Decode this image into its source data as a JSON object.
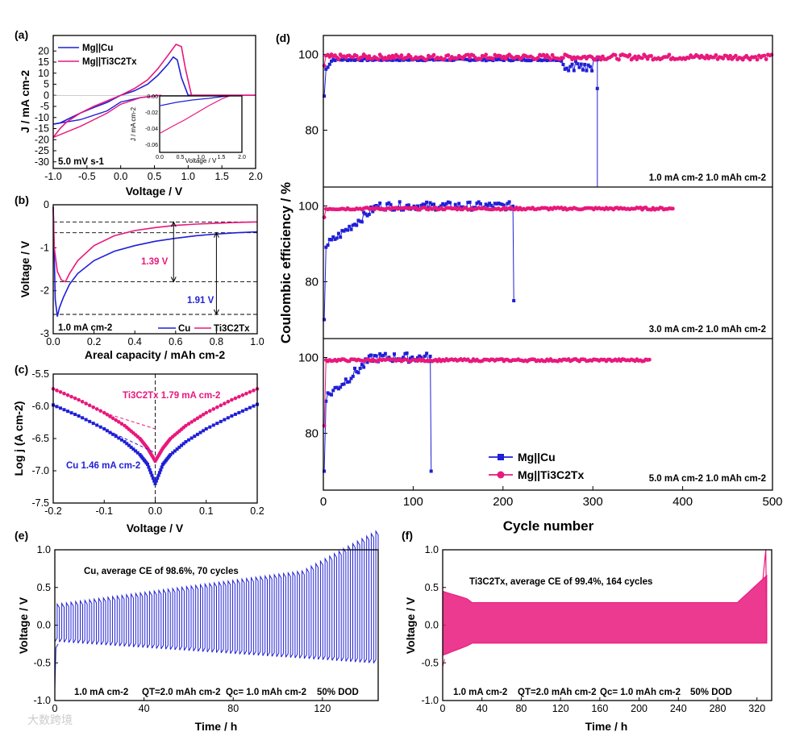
{
  "colors": {
    "cu": "#1f1fd6",
    "ti": "#e8187c"
  },
  "legend": {
    "cu": "Mg||Cu",
    "ti": "Mg||Ti3C2Tx"
  },
  "chart_data": [
    {
      "id": "a",
      "panel_label": "(a)",
      "type": "line",
      "xlabel": "Voltage / V",
      "ylabel": "J / mA cm-2",
      "xlim": [
        -1.0,
        2.0
      ],
      "ylim": [
        -33,
        27
      ],
      "xticks": [
        "-1.0",
        "-0.5",
        "0.0",
        "0.5",
        "1.0",
        "1.5",
        "2.0"
      ],
      "yticks": [
        "-30",
        "-25",
        "-20",
        "-15",
        "-10",
        "-5",
        "0",
        "5",
        "10",
        "15",
        "20"
      ],
      "annotation": "5.0 mV s-1",
      "inset": {
        "xlabel": "Voltage / V",
        "ylabel": "J / mA cm-2",
        "xticks": [
          "0.0",
          "0.5",
          "1.0",
          "1.5",
          "2.0"
        ],
        "yticks": [
          "0.00",
          "-0.02",
          "-0.04",
          "-0.06"
        ]
      },
      "series": [
        {
          "name": "Mg||Cu",
          "x": [
            -1.0,
            -0.9,
            -0.8,
            -0.6,
            -0.4,
            -0.2,
            0.0,
            0.2,
            0.4,
            0.55,
            0.7,
            0.78,
            0.84,
            0.9,
            1.0,
            1.2,
            2.0
          ],
          "y": [
            -13,
            -12.5,
            -11,
            -8,
            -5.5,
            -3.2,
            0,
            2,
            5,
            9,
            14,
            17.3,
            16,
            8,
            0,
            0,
            0
          ]
        },
        {
          "name": "Mg||Ti3C2Tx",
          "x": [
            -1.0,
            -0.9,
            -0.8,
            -0.6,
            -0.4,
            -0.2,
            0.0,
            0.2,
            0.4,
            0.55,
            0.7,
            0.82,
            0.9,
            0.96,
            1.05,
            1.2,
            2.0
          ],
          "y": [
            -19,
            -15,
            -12,
            -8,
            -5,
            -2.5,
            0,
            3,
            7,
            12,
            18,
            23,
            22,
            12,
            0,
            0,
            0
          ]
        }
      ]
    },
    {
      "id": "b",
      "panel_label": "(b)",
      "type": "line",
      "xlabel": "Areal capacity / mAh cm-2",
      "ylabel": "Voltage / V",
      "xlim": [
        0,
        1.0
      ],
      "ylim": [
        -3,
        0
      ],
      "xticks": [
        "0.0",
        "0.2",
        "0.4",
        "0.6",
        "0.8",
        "1.0"
      ],
      "yticks": [
        "0",
        "-1",
        "-2",
        "-3"
      ],
      "annotations": [
        "1.39 V",
        "1.91 V",
        "1.0 mA cm-2"
      ],
      "series": [
        {
          "name": "Cu",
          "x": [
            0,
            0.01,
            0.02,
            0.03,
            0.05,
            0.08,
            0.12,
            0.2,
            0.3,
            0.4,
            0.5,
            0.6,
            0.7,
            0.8,
            0.9,
            1.0
          ],
          "y": [
            -0.05,
            -2.2,
            -2.6,
            -2.4,
            -2.15,
            -1.85,
            -1.6,
            -1.3,
            -1.08,
            -0.95,
            -0.85,
            -0.78,
            -0.72,
            -0.68,
            -0.65,
            -0.63
          ]
        },
        {
          "name": "Ti3C2Tx",
          "x": [
            0,
            0.005,
            0.02,
            0.04,
            0.06,
            0.08,
            0.12,
            0.2,
            0.3,
            0.4,
            0.5,
            0.6,
            0.7,
            0.8,
            0.9,
            1.0
          ],
          "y": [
            -0.05,
            -1.0,
            -1.55,
            -1.75,
            -1.79,
            -1.6,
            -1.3,
            -0.95,
            -0.72,
            -0.6,
            -0.53,
            -0.48,
            -0.45,
            -0.43,
            -0.41,
            -0.4
          ]
        }
      ]
    },
    {
      "id": "c",
      "panel_label": "(c)",
      "type": "scatter",
      "xlabel": "Voltage / V",
      "ylabel": "Log j (A cm-2)",
      "xlim": [
        -0.2,
        0.2
      ],
      "ylim": [
        -7.5,
        -5.5
      ],
      "xticks": [
        "-0.2",
        "-0.1",
        "0.0",
        "0.1",
        "0.2"
      ],
      "yticks": [
        "-5.5",
        "-6.0",
        "-6.5",
        "-7.0",
        "-7.5"
      ],
      "annotations": [
        "Ti3C2Tx 1.79 mA cm-2",
        "Cu 1.46 mA cm-2"
      ],
      "series": [
        {
          "name": "Cu",
          "x": [
            -0.2,
            -0.15,
            -0.1,
            -0.06,
            -0.03,
            -0.015,
            0.0,
            0.015,
            0.03,
            0.06,
            0.1,
            0.15,
            0.2
          ],
          "y": [
            -5.98,
            -6.15,
            -6.35,
            -6.55,
            -6.75,
            -6.9,
            -7.2,
            -6.9,
            -6.75,
            -6.55,
            -6.35,
            -6.15,
            -5.97
          ]
        },
        {
          "name": "Ti3C2Tx",
          "x": [
            -0.2,
            -0.15,
            -0.1,
            -0.06,
            -0.03,
            -0.015,
            0.0,
            0.015,
            0.03,
            0.06,
            0.1,
            0.15,
            0.2
          ],
          "y": [
            -5.73,
            -5.9,
            -6.1,
            -6.3,
            -6.5,
            -6.65,
            -6.85,
            -6.65,
            -6.5,
            -6.3,
            -6.1,
            -5.9,
            -5.73
          ]
        }
      ]
    },
    {
      "id": "d",
      "panel_label": "(d)",
      "type": "scatter",
      "xlabel": "Cycle number",
      "ylabel": "Coulombic efficiency / %",
      "xlim": [
        0,
        500
      ],
      "ylim": [
        65,
        105
      ],
      "xticks": [
        "0",
        "100",
        "200",
        "300",
        "400",
        "500"
      ],
      "yticks": [
        "80",
        "100"
      ],
      "subplots": [
        {
          "condition": "1.0 mA cm-2 1.0 mAh cm-2",
          "cu_cycles": 305,
          "ti_cycles": 500,
          "cu_end_ce": 91
        },
        {
          "condition": "3.0 mA cm-2 1.0 mAh cm-2",
          "cu_cycles": 212,
          "ti_cycles": 390,
          "cu_end_ce": 75
        },
        {
          "condition": "5.0 mA cm-2 1.0 mAh cm-2",
          "cu_cycles": 120,
          "ti_cycles": 363,
          "cu_end_ce": 70
        }
      ]
    },
    {
      "id": "e",
      "panel_label": "(e)",
      "type": "line",
      "xlabel": "Time / h",
      "ylabel": "Voltage / V",
      "xlim": [
        0,
        145
      ],
      "ylim": [
        -1.0,
        1.0
      ],
      "xticks": [
        "0",
        "40",
        "80",
        "120"
      ],
      "yticks": [
        "1.0",
        "0.5",
        "0.0",
        "-0.5",
        "-1.0"
      ],
      "title": "Cu, average CE of 98.6%, 70 cycles",
      "conditions": [
        "1.0 mA cm-2",
        "QT=2.0 mAh cm-2",
        "Qc= 1.0 mAh cm-2",
        "50% DOD"
      ]
    },
    {
      "id": "f",
      "panel_label": "(f)",
      "type": "line",
      "xlabel": "Time / h",
      "ylabel": "Voltage / V",
      "xlim": [
        0,
        335
      ],
      "ylim": [
        -1.0,
        1.0
      ],
      "xticks": [
        "0",
        "40",
        "80",
        "120",
        "160",
        "200",
        "240",
        "280",
        "320"
      ],
      "yticks": [
        "1.0",
        "0.5",
        "0.0",
        "-0.5",
        "-1.0"
      ],
      "title": "Ti3C2Tx, average CE of 99.4%, 164 cycles",
      "conditions": [
        "1.0 mA cm-2",
        "QT=2.0 mAh cm-2",
        "Qc= 1.0 mAh cm-2",
        "50% DOD"
      ]
    }
  ],
  "watermark": "大数跨境"
}
